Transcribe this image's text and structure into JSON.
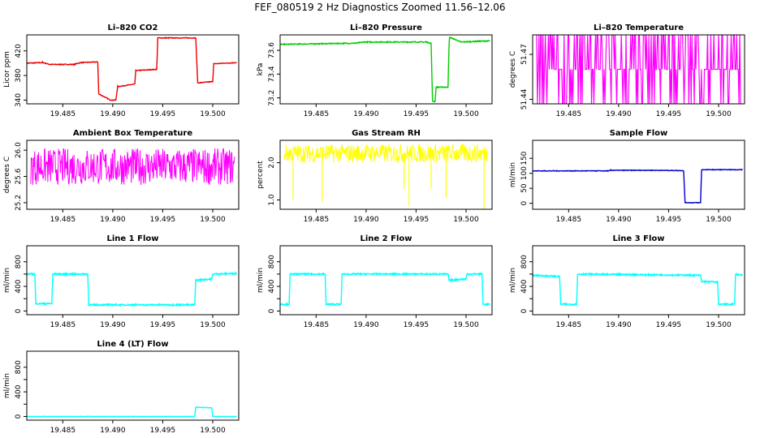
{
  "figure_title": "FEF_080519  2 Hz Diagnostics Zoomed 11.56–12.06",
  "colors": {
    "red": "#ee0000",
    "green": "#00cc00",
    "magenta": "#ff00ff",
    "yellow": "#ffff00",
    "blue": "#0000cc",
    "cyan": "#00ffff"
  },
  "chart_data": [
    {
      "id": "co2",
      "type": "line",
      "title": "Li–820 CO2",
      "ylabel": "Licor ppm",
      "color": "#ee0000",
      "xlim": [
        19.4814,
        19.5026
      ],
      "ylim": [
        334,
        446
      ],
      "yticks": [
        340,
        380,
        420
      ],
      "ytick_labels": [
        "340",
        "380",
        "420"
      ],
      "xticks": [
        19.485,
        19.49,
        19.495,
        19.5
      ],
      "xtick_labels": [
        "19.485",
        "19.490",
        "19.495",
        "19.500"
      ],
      "noise": 0.6,
      "segments": [
        [
          19.4814,
          400
        ],
        [
          19.483,
          401
        ],
        [
          19.4837,
          398
        ],
        [
          19.4861,
          398
        ],
        [
          19.4868,
          401
        ],
        [
          19.4885,
          402
        ],
        [
          19.4886,
          350
        ],
        [
          19.4898,
          340
        ],
        [
          19.4903,
          340
        ],
        [
          19.4905,
          362
        ],
        [
          19.4922,
          366
        ],
        [
          19.4923,
          388
        ],
        [
          19.4944,
          390
        ],
        [
          19.4945,
          441
        ],
        [
          19.4983,
          441
        ],
        [
          19.4985,
          368
        ],
        [
          19.5,
          370
        ],
        [
          19.5001,
          399
        ],
        [
          19.5024,
          401
        ]
      ]
    },
    {
      "id": "pressure",
      "type": "line",
      "title": "Li–820 Pressure",
      "ylabel": "kPa",
      "color": "#00cc00",
      "xlim": [
        19.4814,
        19.5026
      ],
      "ylim": [
        73.15,
        73.73
      ],
      "yticks": [
        73.2,
        73.4,
        73.6
      ],
      "ytick_labels": [
        "73.2",
        "73.4",
        "73.6"
      ],
      "xticks": [
        19.485,
        19.49,
        19.495,
        19.5
      ],
      "xtick_labels": [
        "19.485",
        "19.490",
        "19.495",
        "19.500"
      ],
      "noise": 0.004,
      "segments": [
        [
          19.4814,
          73.65
        ],
        [
          19.489,
          73.66
        ],
        [
          19.4898,
          73.67
        ],
        [
          19.496,
          73.67
        ],
        [
          19.4965,
          73.66
        ],
        [
          19.49665,
          73.17
        ],
        [
          19.4969,
          73.17
        ],
        [
          19.497,
          73.29
        ],
        [
          19.4982,
          73.29
        ],
        [
          19.4983,
          73.65
        ],
        [
          19.49835,
          73.71
        ],
        [
          19.4995,
          73.67
        ],
        [
          19.5024,
          73.68
        ]
      ]
    },
    {
      "id": "li_temp",
      "type": "digital",
      "title": "Li–820 Temperature",
      "ylabel": "degrees C",
      "color": "#ff00ff",
      "xlim": [
        19.4814,
        19.5026
      ],
      "ylim": [
        51.437,
        51.483
      ],
      "yticks": [
        51.44,
        51.47
      ],
      "ytick_labels": [
        "51.44",
        "51.47"
      ],
      "xticks": [
        19.485,
        19.49,
        19.495,
        19.5
      ],
      "xtick_labels": [
        "19.485",
        "19.490",
        "19.495",
        "19.500"
      ],
      "levels": [
        51.437,
        51.46,
        51.483
      ]
    },
    {
      "id": "box_temp",
      "type": "noisy",
      "title": "Ambient Box Temperature",
      "ylabel": "degrees C",
      "color": "#ff00ff",
      "xlim": [
        19.4814,
        19.5026
      ],
      "ylim": [
        25.1,
        26.15
      ],
      "yticks": [
        25.2,
        25.6,
        26.0
      ],
      "ytick_labels": [
        "25.2",
        "25.6",
        "26.0"
      ],
      "xticks": [
        19.485,
        19.49,
        19.495,
        19.5
      ],
      "xtick_labels": [
        "19.485",
        "19.490",
        "19.495",
        "19.500"
      ],
      "base": 25.75,
      "spread": 0.28
    },
    {
      "id": "rh",
      "type": "noisy",
      "title": "Gas Stream RH",
      "ylabel": "percent",
      "color": "#ffff00",
      "xlim": [
        19.4814,
        19.5026
      ],
      "ylim": [
        0.75,
        2.6
      ],
      "yticks": [
        1.0,
        2.0
      ],
      "ytick_labels": [
        "1.0",
        "2.0"
      ],
      "xticks": [
        19.485,
        19.49,
        19.495,
        19.5
      ],
      "xtick_labels": [
        "19.485",
        "19.490",
        "19.495",
        "19.500"
      ],
      "base": 2.25,
      "spread": 0.25,
      "dips": [
        [
          19.4827,
          1.0
        ],
        [
          19.4856,
          0.95
        ],
        [
          19.4938,
          1.3
        ],
        [
          19.4943,
          0.85
        ],
        [
          19.4965,
          1.3
        ],
        [
          19.498,
          1.05
        ],
        [
          19.5018,
          0.75
        ]
      ]
    },
    {
      "id": "sample_flow",
      "type": "line",
      "title": "Sample Flow",
      "ylabel": "ml/min",
      "color": "#0000cc",
      "xlim": [
        19.4814,
        19.5026
      ],
      "ylim": [
        -20,
        210
      ],
      "yticks": [
        0,
        50,
        100,
        150
      ],
      "ytick_labels": [
        "0",
        "50",
        "100",
        "150"
      ],
      "xticks": [
        19.485,
        19.49,
        19.495,
        19.5
      ],
      "xtick_labels": [
        "19.485",
        "19.490",
        "19.495",
        "19.500"
      ],
      "noise": 1,
      "segments": [
        [
          19.4814,
          108
        ],
        [
          19.489,
          108
        ],
        [
          19.4892,
          110
        ],
        [
          19.4935,
          110
        ],
        [
          19.4965,
          109
        ],
        [
          19.49665,
          2
        ],
        [
          19.4982,
          2
        ],
        [
          19.4983,
          112
        ],
        [
          19.5024,
          112
        ]
      ]
    },
    {
      "id": "line1",
      "type": "line",
      "title": "Line 1 Flow",
      "ylabel": "ml/min",
      "color": "#00ffff",
      "xlim": [
        19.4814,
        19.5026
      ],
      "ylim": [
        -60,
        1060
      ],
      "yticks": [
        0,
        200,
        400,
        600,
        800
      ],
      "ytick_labels": [
        "0",
        "",
        "400",
        "",
        "800"
      ],
      "xticks": [
        19.485,
        19.49,
        19.495,
        19.5
      ],
      "xtick_labels": [
        "19.485",
        "19.490",
        "19.495",
        "19.500"
      ],
      "noise": 12,
      "segments": [
        [
          19.4814,
          600
        ],
        [
          19.4822,
          600
        ],
        [
          19.4823,
          120
        ],
        [
          19.4839,
          120
        ],
        [
          19.484,
          600
        ],
        [
          19.4875,
          600
        ],
        [
          19.4876,
          100
        ],
        [
          19.4982,
          100
        ],
        [
          19.4983,
          500
        ],
        [
          19.4999,
          520
        ],
        [
          19.5,
          600
        ],
        [
          19.5024,
          610
        ]
      ]
    },
    {
      "id": "line2",
      "type": "line",
      "title": "Line 2 Flow",
      "ylabel": "ml/min",
      "color": "#00ffff",
      "xlim": [
        19.4814,
        19.5026
      ],
      "ylim": [
        -60,
        1060
      ],
      "yticks": [
        0,
        200,
        400,
        600,
        800
      ],
      "ytick_labels": [
        "0",
        "",
        "400",
        "",
        "800"
      ],
      "xticks": [
        19.485,
        19.49,
        19.495,
        19.5
      ],
      "xtick_labels": [
        "19.485",
        "19.490",
        "19.495",
        "19.500"
      ],
      "noise": 12,
      "segments": [
        [
          19.4814,
          110
        ],
        [
          19.4823,
          110
        ],
        [
          19.4824,
          600
        ],
        [
          19.4859,
          600
        ],
        [
          19.486,
          110
        ],
        [
          19.4875,
          110
        ],
        [
          19.4876,
          600
        ],
        [
          19.4982,
          600
        ],
        [
          19.4983,
          500
        ],
        [
          19.5,
          520
        ],
        [
          19.5001,
          600
        ],
        [
          19.5016,
          600
        ],
        [
          19.5017,
          110
        ],
        [
          19.5024,
          110
        ]
      ]
    },
    {
      "id": "line3",
      "type": "line",
      "title": "Line 3 Flow",
      "ylabel": "ml/min",
      "color": "#00ffff",
      "xlim": [
        19.4814,
        19.5026
      ],
      "ylim": [
        -60,
        1060
      ],
      "yticks": [
        0,
        200,
        400,
        600,
        800
      ],
      "ytick_labels": [
        "0",
        "",
        "400",
        "",
        "800"
      ],
      "xticks": [
        19.485,
        19.49,
        19.495,
        19.5
      ],
      "xtick_labels": [
        "19.485",
        "19.490",
        "19.495",
        "19.500"
      ],
      "noise": 12,
      "segments": [
        [
          19.4814,
          580
        ],
        [
          19.4841,
          560
        ],
        [
          19.4842,
          110
        ],
        [
          19.4858,
          110
        ],
        [
          19.4859,
          600
        ],
        [
          19.4982,
          580
        ],
        [
          19.4983,
          480
        ],
        [
          19.4999,
          470
        ],
        [
          19.5,
          110
        ],
        [
          19.5016,
          110
        ],
        [
          19.5017,
          600
        ],
        [
          19.5024,
          580
        ]
      ]
    },
    {
      "id": "line4",
      "type": "line",
      "title": "Line 4 (LT) Flow",
      "ylabel": "ml/min",
      "color": "#00ffff",
      "xlim": [
        19.4814,
        19.5026
      ],
      "ylim": [
        -60,
        1060
      ],
      "yticks": [
        0,
        200,
        400,
        600,
        800
      ],
      "ytick_labels": [
        "0",
        "",
        "400",
        "",
        "800"
      ],
      "xticks": [
        19.485,
        19.49,
        19.495,
        19.5
      ],
      "xtick_labels": [
        "19.485",
        "19.490",
        "19.495",
        "19.500"
      ],
      "noise": 3,
      "segments": [
        [
          19.4814,
          0
        ],
        [
          19.4982,
          0
        ],
        [
          19.4983,
          150
        ],
        [
          19.4999,
          140
        ],
        [
          19.5,
          0
        ],
        [
          19.5024,
          0
        ]
      ]
    }
  ]
}
